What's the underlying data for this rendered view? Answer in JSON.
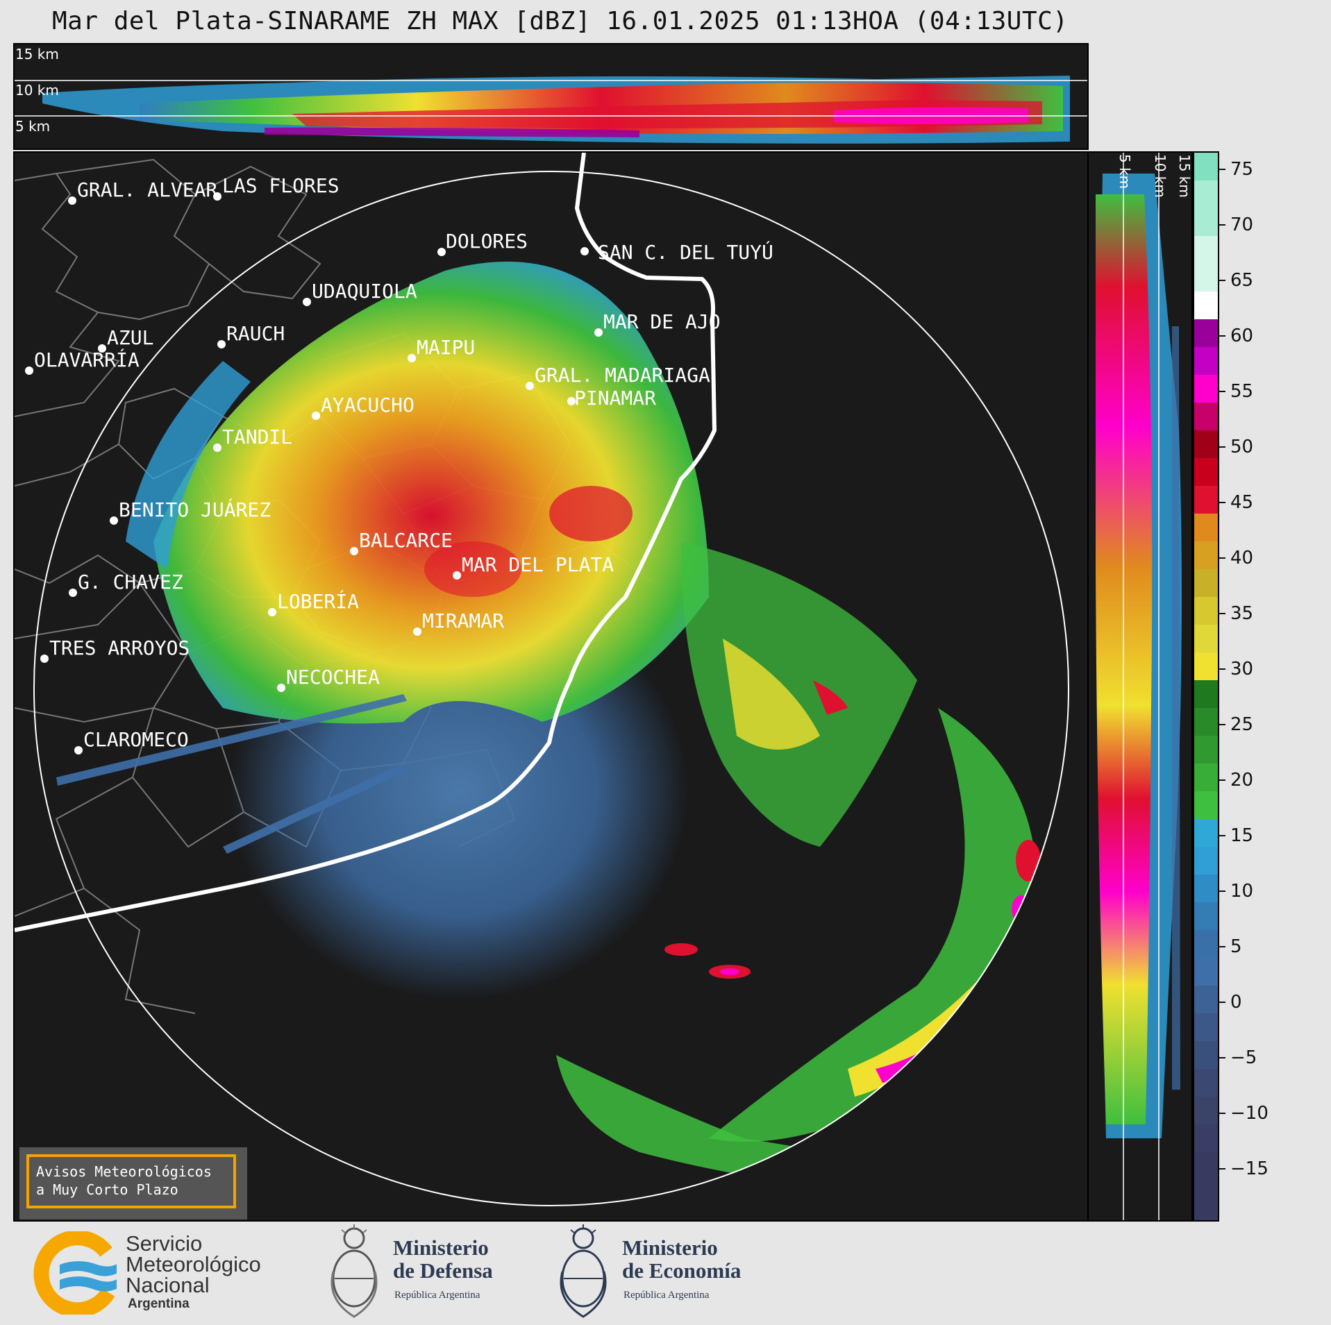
{
  "title": "Mar del Plata-SINARAME ZH MAX [dBZ] 16.01.2025 01:13HOA (04:13UTC)",
  "top_panel": {
    "altitude_labels": [
      "15 km",
      "10 km",
      "5 km"
    ]
  },
  "side_panel": {
    "altitude_labels": [
      "5 km",
      "10 km",
      "15 km"
    ]
  },
  "colorbar": {
    "unit": "dBZ",
    "min": -19.5,
    "max": 76.5,
    "ticks": [
      "75",
      "70",
      "65",
      "60",
      "55",
      "50",
      "45",
      "40",
      "35",
      "30",
      "25",
      "20",
      "15",
      "10",
      "5",
      "0",
      "−5",
      "−10",
      "−15"
    ],
    "colors": {
      "clear_air": "#3a3d66",
      "weak": "#3f6fa8",
      "light": "#2f9fd6",
      "green": "#3fbf3f",
      "dark_green": "#1f7a1f",
      "yellow": "#f0e030",
      "orange": "#e08a1e",
      "red": "#e01030",
      "dark_red": "#a00018",
      "magenta": "#ff00cc",
      "purple": "#9a009a",
      "white": "#ffffff",
      "aqua": "#80e0c0"
    }
  },
  "map": {
    "cities": [
      {
        "name": "GRAL. ALVEAR"
      },
      {
        "name": "LAS FLORES"
      },
      {
        "name": "DOLORES"
      },
      {
        "name": "SAN C. DEL TUYÚ"
      },
      {
        "name": "UDAQUIOLA"
      },
      {
        "name": "MAR DE AJO"
      },
      {
        "name": "AZUL"
      },
      {
        "name": "RAUCH"
      },
      {
        "name": "MAIPU"
      },
      {
        "name": "OLAVARRÍA"
      },
      {
        "name": "GRAL. MADARIAGA"
      },
      {
        "name": "PINAMAR"
      },
      {
        "name": "AYACUCHO"
      },
      {
        "name": "TANDIL"
      },
      {
        "name": "BENITO JUÁREZ"
      },
      {
        "name": "BALCARCE"
      },
      {
        "name": "MAR DEL PLATA"
      },
      {
        "name": "G. CHAVEZ"
      },
      {
        "name": "LOBERÍA"
      },
      {
        "name": "MIRAMAR"
      },
      {
        "name": "TRES ARROYOS"
      },
      {
        "name": "NECOCHEA"
      },
      {
        "name": "CLAROMECO"
      }
    ]
  },
  "alert_box": {
    "line1": "Avisos Meteorológicos",
    "line2": "a Muy Corto Plazo"
  },
  "footer": {
    "smn": {
      "line1": "Servicio",
      "line2": "Meteorológico",
      "line3": "Nacional",
      "line4": "Argentina"
    },
    "defensa": {
      "line1": "Ministerio",
      "line2": "de Defensa",
      "sub": "República Argentina"
    },
    "economia": {
      "line1": "Ministerio",
      "line2": "de Economía",
      "sub": "República Argentina"
    }
  }
}
